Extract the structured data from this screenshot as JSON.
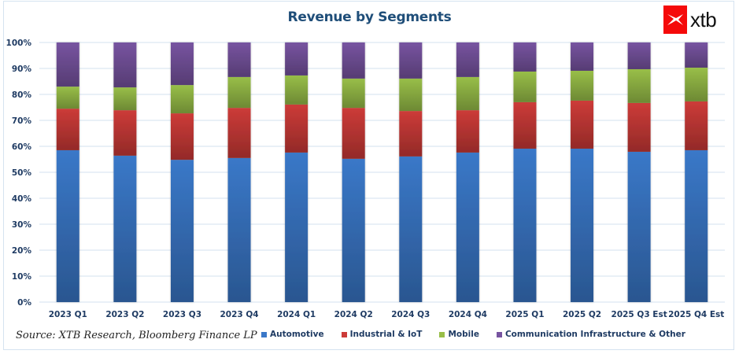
{
  "branding": {
    "logo_text": "xtb",
    "logo_color": "#f50a0a"
  },
  "source_note": "Source: XTB Research, Bloomberg Finance LP",
  "chart_data": {
    "type": "bar",
    "stacked": true,
    "normalized": true,
    "title": "Revenue by Segments",
    "xlabel": "",
    "ylabel": "",
    "ylim": [
      0,
      100
    ],
    "y_ticks": [
      0,
      10,
      20,
      30,
      40,
      50,
      60,
      70,
      80,
      90,
      100
    ],
    "y_tick_labels": [
      "0%",
      "10%",
      "20%",
      "30%",
      "40%",
      "50%",
      "60%",
      "70%",
      "80%",
      "90%",
      "100%"
    ],
    "grid": true,
    "legend_position": "bottom",
    "categories": [
      "2023 Q1",
      "2023 Q2",
      "2023 Q3",
      "2023 Q4",
      "2024 Q1",
      "2024 Q2",
      "2024 Q3",
      "2024 Q4",
      "2025 Q1",
      "2025 Q2",
      "2025 Q3 Est",
      "2025 Q4 Est"
    ],
    "series": [
      {
        "name": "Automotive",
        "color": "#3a78c8",
        "values": [
          58.5,
          56.4,
          54.8,
          55.5,
          57.6,
          55.2,
          56.1,
          57.6,
          59.1,
          59.1,
          57.9,
          58.5
        ]
      },
      {
        "name": "Industrial & IoT",
        "color": "#cc3b38",
        "values": [
          16.0,
          17.5,
          17.9,
          19.3,
          18.5,
          19.6,
          17.5,
          16.3,
          17.9,
          18.5,
          18.8,
          18.8
        ]
      },
      {
        "name": "Mobile",
        "color": "#98be48",
        "values": [
          8.5,
          8.8,
          10.9,
          11.9,
          11.2,
          11.3,
          12.5,
          12.8,
          11.8,
          11.5,
          13.0,
          13.0
        ]
      },
      {
        "name": "Communication Infrastructure & Other",
        "color": "#7754a0",
        "values": [
          17.0,
          17.3,
          16.4,
          13.3,
          12.7,
          13.9,
          13.9,
          13.3,
          11.2,
          10.9,
          10.3,
          9.7
        ]
      }
    ]
  }
}
